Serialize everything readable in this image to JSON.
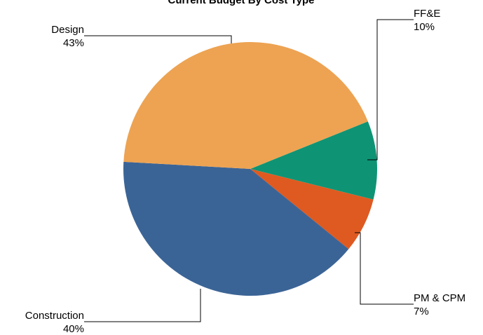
{
  "chart_data": {
    "type": "pie",
    "title": "Current Budget By Cost Type",
    "slices": [
      {
        "label": "FF&E",
        "percent_label": "10%",
        "value": 10,
        "color": "#0e9474"
      },
      {
        "label": "PM & CPM",
        "percent_label": "7%",
        "value": 7,
        "color": "#de5a21"
      },
      {
        "label": "Construction",
        "percent_label": "40%",
        "value": 40,
        "color": "#3b6496"
      },
      {
        "label": "Design",
        "percent_label": "43%",
        "value": 43,
        "color": "#eda352"
      }
    ]
  }
}
